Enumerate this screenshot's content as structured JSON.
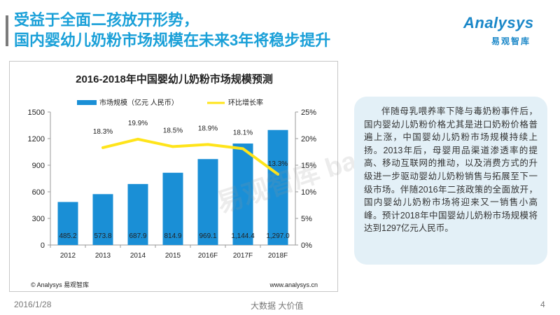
{
  "header": {
    "title_line1": "受益于全面二孩放开形势，",
    "title_line2": "国内婴幼儿奶粉市场规模在未来3年将稳步提升"
  },
  "logo": {
    "word": "Analysys",
    "cn": "易观智库"
  },
  "chart_data": {
    "type": "bar",
    "title": "2016-2018年中国婴幼儿奶粉市场规模预测",
    "categories": [
      "2012",
      "2013",
      "2014",
      "2015",
      "2016F",
      "2017F",
      "2018F"
    ],
    "series": [
      {
        "name": "市场规模（亿元 人民币）",
        "type": "bar",
        "axis": "left",
        "values": [
          485.2,
          573.8,
          687.9,
          814.9,
          969.1,
          1144.4,
          1297.0
        ],
        "labels": [
          "485.2",
          "573.8",
          "687.9",
          "814.9",
          "969.1",
          "1,144.4",
          "1,297.0"
        ]
      },
      {
        "name": "环比增长率",
        "type": "line",
        "axis": "right",
        "values": [
          null,
          18.3,
          19.9,
          18.5,
          18.9,
          18.1,
          13.3
        ],
        "labels": [
          "",
          "18.3%",
          "19.9%",
          "18.5%",
          "18.9%",
          "18.1%",
          "13.3%"
        ]
      }
    ],
    "y_left": {
      "min": 0,
      "max": 1500,
      "ticks": [
        "0",
        "300",
        "600",
        "900",
        "1200",
        "1500"
      ]
    },
    "y_right": {
      "min": 0,
      "max": 25,
      "ticks": [
        "0%",
        "5%",
        "10%",
        "15%",
        "20%",
        "25%"
      ]
    },
    "legend_position": "top",
    "colors": {
      "bar": "#1a8fd6",
      "line": "#ffe41a",
      "axis": "#999999"
    },
    "source": "© Analysys 易观智库",
    "website": "www.analysys.cn"
  },
  "note": {
    "text": "伴随母乳喂养率下降与毒奶粉事件后，国内婴幼儿奶粉价格尤其是进口奶粉价格普遍上涨，中国婴幼儿奶粉市场规模持续上扬。2013年后，母婴用品渠道渗透率的提高、移动互联网的推动，以及消费方式的升级进一步驱动婴幼儿奶粉销售与拓展至下一级市场。伴随2016年二孩政策的全面放开，国内婴幼儿奶粉市场将迎来又一销售小高峰。预计2018年中国婴幼儿奶粉市场规模将达到1297亿元人民币。"
  },
  "watermark": "易观智库 baogao8.com",
  "footer": {
    "date": "2016/1/28",
    "slogan": "大数据    大价值",
    "page": "4"
  }
}
